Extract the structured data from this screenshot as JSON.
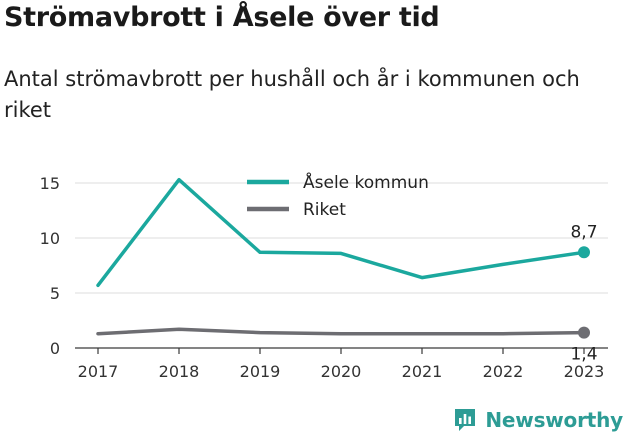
{
  "title": "Strömavbrott i Åsele över tid",
  "subtitle": "Antal strömavbrott per hushåll och år i kommunen och riket",
  "brand": {
    "name": "Newsworthy",
    "icon": "chart-logo-icon"
  },
  "chart_data": {
    "type": "line",
    "x": [
      "2017",
      "2018",
      "2019",
      "2020",
      "2021",
      "2022",
      "2023"
    ],
    "ylim": [
      0,
      16
    ],
    "yticks": [
      0,
      5,
      10,
      15
    ],
    "grid": true,
    "legend_placement": "top-center",
    "series": [
      {
        "name": "Åsele kommun",
        "color": "#1ba89e",
        "values": [
          5.7,
          15.3,
          8.7,
          8.6,
          6.4,
          7.6,
          8.7
        ],
        "end_label": "8,7"
      },
      {
        "name": "Riket",
        "color": "#6d6d72",
        "values": [
          1.3,
          1.7,
          1.4,
          1.3,
          1.3,
          1.3,
          1.4
        ],
        "end_label": "1,4"
      }
    ]
  }
}
